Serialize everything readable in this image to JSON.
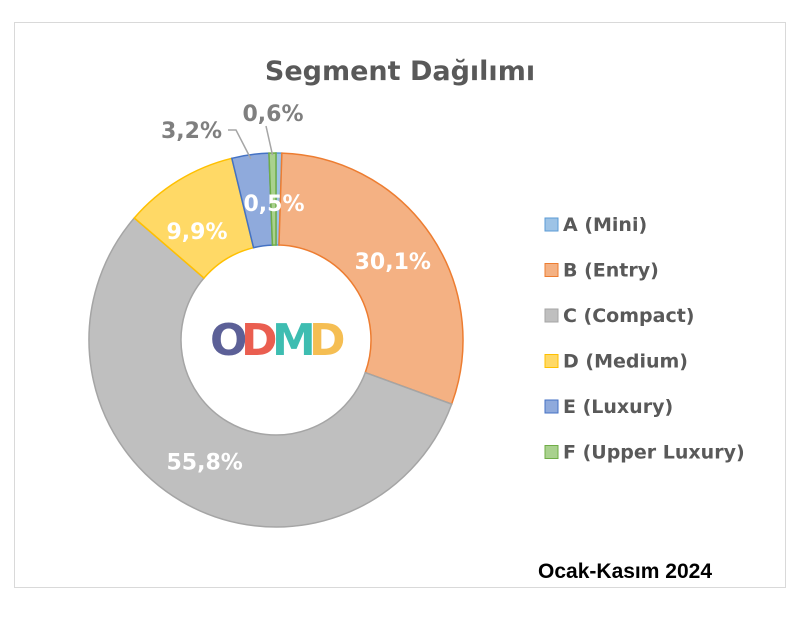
{
  "chart_data": {
    "type": "pie",
    "variant": "donut",
    "title": "Segment Dağılımı",
    "period": "Ocak-Kasım 2024",
    "legend_position": "right",
    "categories": [
      "A (Mini)",
      "B (Entry)",
      "C (Compact)",
      "D (Medium)",
      "E (Luxury)",
      "F (Upper Luxury)"
    ],
    "values": [
      0.5,
      30.1,
      55.8,
      9.9,
      3.2,
      0.6
    ],
    "value_labels": [
      "0,5%",
      "30,1%",
      "55,8%",
      "9,9%",
      "3,2%",
      "0,6%"
    ],
    "colors": [
      "#9dc3e6",
      "#f4b183",
      "#bfbfbf",
      "#ffd966",
      "#8faadc",
      "#a9d18e"
    ],
    "border_colors": [
      "#5b9bd5",
      "#ed7d31",
      "#a5a5a5",
      "#ffc000",
      "#4472c4",
      "#70ad47"
    ],
    "series": [
      {
        "values": [
          0.5,
          30.1,
          55.8,
          9.9,
          3.2,
          0.6
        ]
      }
    ]
  },
  "logo": {
    "text": "ODMD",
    "letters": [
      "O",
      "D",
      "M",
      "D"
    ],
    "colors": [
      "#4a4f8c",
      "#e84c3d",
      "#29b6a8",
      "#f4b740"
    ]
  }
}
